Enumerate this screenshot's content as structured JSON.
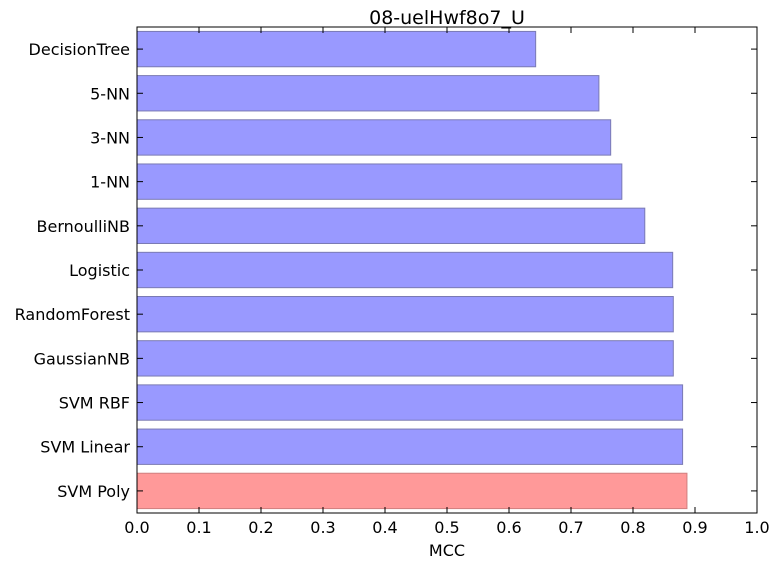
{
  "chart_data": {
    "type": "bar",
    "orientation": "horizontal",
    "title": "08-uelHwf8o7_U",
    "xlabel": "MCC",
    "ylabel": "",
    "xlim": [
      0.0,
      1.0
    ],
    "xticks": [
      "0.0",
      "0.1",
      "0.2",
      "0.3",
      "0.4",
      "0.5",
      "0.6",
      "0.7",
      "0.8",
      "0.9",
      "1.0"
    ],
    "grid": false,
    "categories": [
      "DecisionTree",
      "5-NN",
      "3-NN",
      "1-NN",
      "BernoulliNB",
      "Logistic",
      "RandomForest",
      "GaussianNB",
      "SVM RBF",
      "SVM Linear",
      "SVM Poly"
    ],
    "values": [
      0.643,
      0.745,
      0.764,
      0.782,
      0.819,
      0.864,
      0.865,
      0.865,
      0.88,
      0.88,
      0.887
    ],
    "colors": [
      "#9999ff",
      "#9999ff",
      "#9999ff",
      "#9999ff",
      "#9999ff",
      "#9999ff",
      "#9999ff",
      "#9999ff",
      "#9999ff",
      "#9999ff",
      "#ff9999"
    ]
  }
}
